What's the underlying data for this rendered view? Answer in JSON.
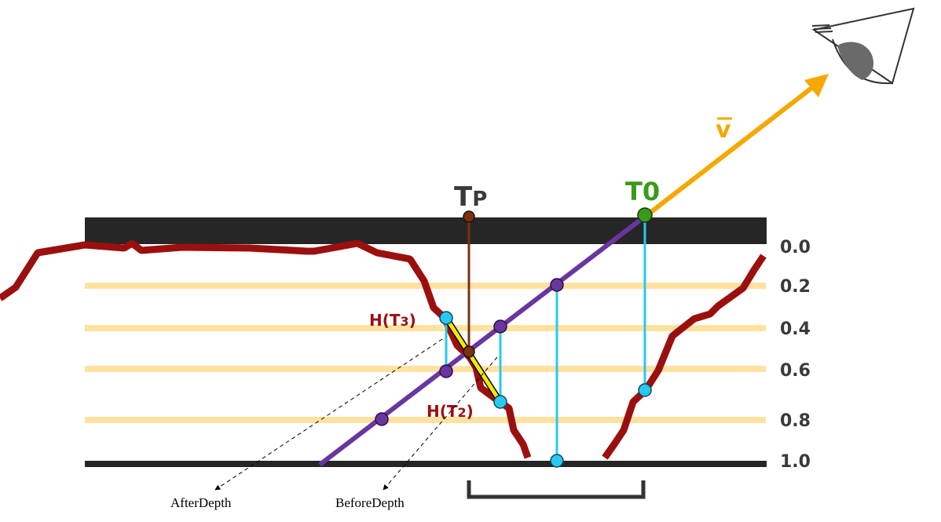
{
  "labels": {
    "t_zero": "T0",
    "t_p_main": "T",
    "t_p_sub": "P",
    "view_vector": "v",
    "h_t3_a": "H(T",
    "h_t3_sub": "3",
    "h_t3_b": ")",
    "h_t2_a": "H(T",
    "h_t2_sub": "2",
    "h_t2_b": ")",
    "after_depth": "AfterDepth",
    "before_depth": "BeforeDepth"
  },
  "depth_ticks": [
    "0.0",
    "0.2",
    "0.4",
    "0.6",
    "0.8",
    "1.0"
  ],
  "colors": {
    "surface": "#9b0f0f",
    "ray": "#6a35a0",
    "view": "#f5a800",
    "sample": "#29c8f0",
    "layer": "#ffe2a0",
    "tp": "#7a3110",
    "t0": "#3a9a1a",
    "interp": "#f5e800"
  },
  "icon": "eye-icon"
}
